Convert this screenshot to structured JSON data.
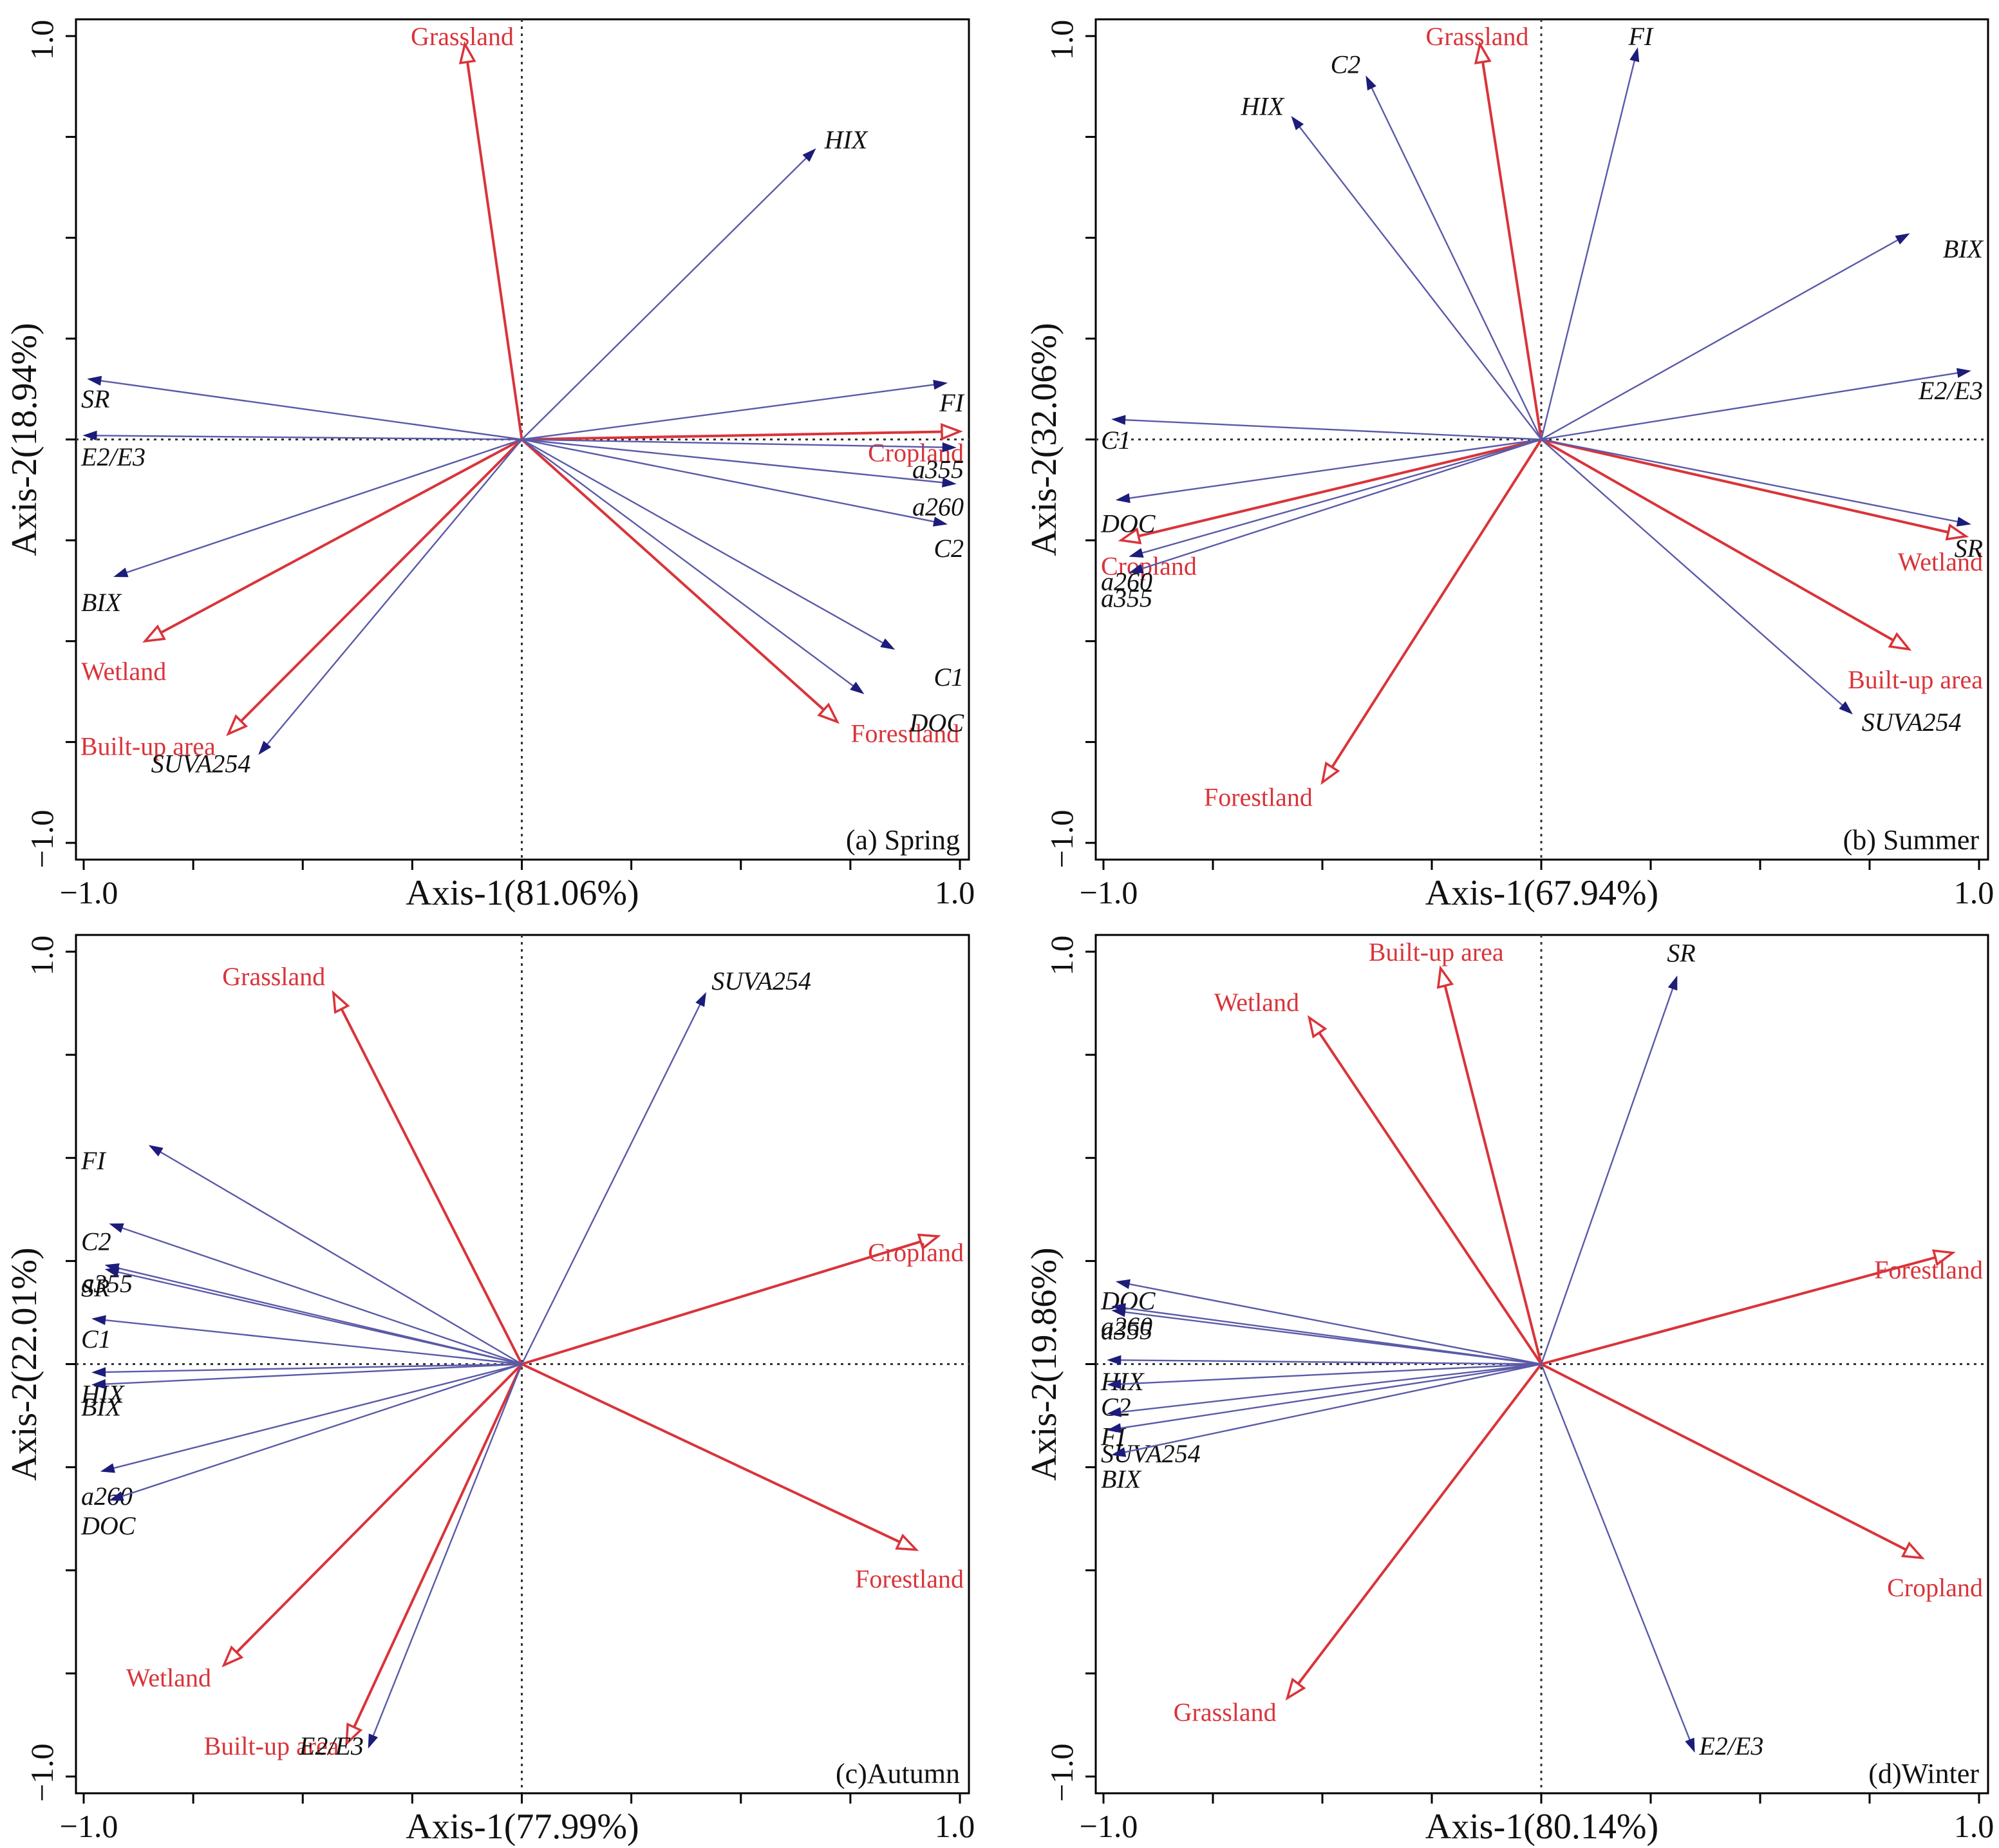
{
  "colors": {
    "env": "#d9343a",
    "var": "#1c1c7a",
    "var_line": "#5a5aa8",
    "frame": "#000000"
  },
  "chart_data": [
    {
      "type": "biplot",
      "panel_label": "(a) Spring",
      "xlabel": "Axis-1(81.06%)",
      "ylabel": "Axis-2(18.94%)",
      "xlim": [
        -1.0,
        1.0
      ],
      "ylim": [
        -1.0,
        1.0
      ],
      "xticks": [
        "−1.0",
        "1.0"
      ],
      "yticks": [
        "1.0",
        "−1.0"
      ],
      "env_vectors": [
        {
          "name": "Grassland",
          "x": -0.13,
          "y": 0.98
        },
        {
          "name": "Cropland",
          "x": 1.0,
          "y": 0.02
        },
        {
          "name": "Forestland",
          "x": 0.72,
          "y": -0.7
        },
        {
          "name": "Wetland",
          "x": -0.86,
          "y": -0.5
        },
        {
          "name": "Built-up area",
          "x": -0.67,
          "y": -0.73
        }
      ],
      "variables": [
        {
          "name": "HIX",
          "x": 0.67,
          "y": 0.72
        },
        {
          "name": "FI",
          "x": 0.97,
          "y": 0.14
        },
        {
          "name": "a355",
          "x": 0.99,
          "y": -0.02
        },
        {
          "name": "a260",
          "x": 0.99,
          "y": -0.11
        },
        {
          "name": "C2",
          "x": 0.97,
          "y": -0.21
        },
        {
          "name": "C1",
          "x": 0.85,
          "y": -0.52
        },
        {
          "name": "DOC",
          "x": 0.78,
          "y": -0.63
        },
        {
          "name": "SR",
          "x": -0.99,
          "y": 0.15
        },
        {
          "name": "E2/E3",
          "x": -1.0,
          "y": 0.01
        },
        {
          "name": "BIX",
          "x": -0.93,
          "y": -0.34
        },
        {
          "name": "SUVA254",
          "x": -0.6,
          "y": -0.78
        }
      ]
    },
    {
      "type": "biplot",
      "panel_label": "(b) Summer",
      "xlabel": "Axis-1(67.94%)",
      "ylabel": "Axis-2(32.06%)",
      "xlim": [
        -1.0,
        1.0
      ],
      "ylim": [
        -1.0,
        1.0
      ],
      "xticks": [
        "−1.0",
        "1.0"
      ],
      "yticks": [
        "1.0",
        "−1.0"
      ],
      "env_vectors": [
        {
          "name": "Grassland",
          "x": -0.14,
          "y": 0.98
        },
        {
          "name": "Cropland",
          "x": -0.96,
          "y": -0.25
        },
        {
          "name": "Wetland",
          "x": 0.97,
          "y": -0.24
        },
        {
          "name": "Built-up area",
          "x": 0.84,
          "y": -0.52
        },
        {
          "name": "Forestland",
          "x": -0.5,
          "y": -0.85
        }
      ],
      "variables": [
        {
          "name": "FI",
          "x": 0.22,
          "y": 0.97
        },
        {
          "name": "C2",
          "x": -0.4,
          "y": 0.9
        },
        {
          "name": "HIX",
          "x": -0.57,
          "y": 0.8
        },
        {
          "name": "BIX",
          "x": 0.84,
          "y": 0.51
        },
        {
          "name": "E2/E3",
          "x": 0.98,
          "y": 0.17
        },
        {
          "name": "C1",
          "x": -0.98,
          "y": 0.05
        },
        {
          "name": "DOC",
          "x": -0.97,
          "y": -0.15
        },
        {
          "name": "a260",
          "x": -0.94,
          "y": -0.29
        },
        {
          "name": "a355",
          "x": -0.94,
          "y": -0.33
        },
        {
          "name": "SR",
          "x": 0.98,
          "y": -0.21
        },
        {
          "name": "SUVA254",
          "x": 0.71,
          "y": -0.68
        }
      ]
    },
    {
      "type": "biplot",
      "panel_label": "(c)Autumn",
      "xlabel": "Axis-1(77.99%)",
      "ylabel": "Axis-2(22.01%)",
      "xlim": [
        -1.0,
        1.0
      ],
      "ylim": [
        -1.0,
        1.0
      ],
      "xticks": [
        "−1.0",
        "1.0"
      ],
      "yticks": [
        "1.0",
        "−1.0"
      ],
      "env_vectors": [
        {
          "name": "Grassland",
          "x": -0.43,
          "y": 0.9
        },
        {
          "name": "Cropland",
          "x": 0.95,
          "y": 0.31
        },
        {
          "name": "Forestland",
          "x": 0.9,
          "y": -0.45
        },
        {
          "name": "Wetland",
          "x": -0.68,
          "y": -0.73
        },
        {
          "name": "Built-up area",
          "x": -0.4,
          "y": -0.92
        }
      ],
      "variables": [
        {
          "name": "SUVA254",
          "x": 0.42,
          "y": 0.9
        },
        {
          "name": "FI",
          "x": -0.85,
          "y": 0.53
        },
        {
          "name": "C2",
          "x": -0.94,
          "y": 0.34
        },
        {
          "name": "a355",
          "x": -0.95,
          "y": 0.24
        },
        {
          "name": "SR",
          "x": -0.95,
          "y": 0.23
        },
        {
          "name": "C1",
          "x": -0.98,
          "y": 0.11
        },
        {
          "name": "HIX",
          "x": -0.98,
          "y": -0.02
        },
        {
          "name": "BIX",
          "x": -0.98,
          "y": -0.05
        },
        {
          "name": "a260",
          "x": -0.96,
          "y": -0.26
        },
        {
          "name": "DOC",
          "x": -0.94,
          "y": -0.33
        },
        {
          "name": "E2/E3",
          "x": -0.35,
          "y": -0.93
        }
      ]
    },
    {
      "type": "biplot",
      "panel_label": "(d)Winter",
      "xlabel": "Axis-1(80.14%)",
      "ylabel": "Axis-2(19.86%)",
      "xlim": [
        -1.0,
        1.0
      ],
      "ylim": [
        -1.0,
        1.0
      ],
      "xticks": [
        "−1.0",
        "1.0"
      ],
      "yticks": [
        "1.0",
        "−1.0"
      ],
      "env_vectors": [
        {
          "name": "Built-up area",
          "x": -0.23,
          "y": 0.96
        },
        {
          "name": "Wetland",
          "x": -0.53,
          "y": 0.84
        },
        {
          "name": "Forestland",
          "x": 0.94,
          "y": 0.27
        },
        {
          "name": "Cropland",
          "x": 0.87,
          "y": -0.47
        },
        {
          "name": "Grassland",
          "x": -0.58,
          "y": -0.81
        }
      ],
      "variables": [
        {
          "name": "SR",
          "x": 0.31,
          "y": 0.94
        },
        {
          "name": "DOC",
          "x": -0.97,
          "y": 0.2
        },
        {
          "name": "a260",
          "x": -0.98,
          "y": 0.14
        },
        {
          "name": "a355",
          "x": -0.98,
          "y": 0.13
        },
        {
          "name": "HIX",
          "x": -0.99,
          "y": 0.01
        },
        {
          "name": "C2",
          "x": -0.99,
          "y": -0.05
        },
        {
          "name": "FI",
          "x": -0.99,
          "y": -0.12
        },
        {
          "name": "SUVA254",
          "x": -0.99,
          "y": -0.16
        },
        {
          "name": "BIX",
          "x": -0.98,
          "y": -0.22
        },
        {
          "name": "E2/E3",
          "x": 0.35,
          "y": -0.94
        }
      ]
    }
  ]
}
